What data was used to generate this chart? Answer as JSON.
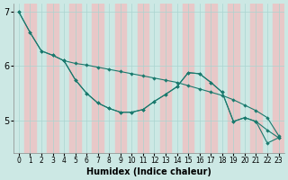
{
  "xlabel": "Humidex (Indice chaleur)",
  "bg_color": "#cce8e4",
  "grid_color": "#aad4d0",
  "band_color": "#e8c8c8",
  "line_color": "#1a7a6e",
  "xlim": [
    -0.5,
    23.5
  ],
  "ylim": [
    4.4,
    7.15
  ],
  "xticks": [
    0,
    1,
    2,
    3,
    4,
    5,
    6,
    7,
    8,
    9,
    10,
    11,
    12,
    13,
    14,
    15,
    16,
    17,
    18,
    19,
    20,
    21,
    22,
    23
  ],
  "yticks": [
    5,
    6,
    7
  ],
  "line1_x": [
    0,
    1,
    2,
    3,
    4,
    5,
    6,
    7,
    8,
    9,
    10,
    11,
    12,
    13,
    14,
    15,
    16,
    17,
    18,
    19,
    20,
    21,
    22,
    23
  ],
  "line1_y": [
    7.0,
    6.62,
    6.28,
    6.2,
    6.1,
    6.05,
    6.02,
    5.98,
    5.94,
    5.9,
    5.86,
    5.82,
    5.78,
    5.74,
    5.7,
    5.64,
    5.58,
    5.52,
    5.46,
    5.38,
    5.28,
    5.18,
    5.05,
    4.72
  ],
  "line2_x": [
    0,
    1,
    2,
    3,
    4,
    5,
    6,
    7,
    8,
    9,
    10,
    11,
    12,
    13,
    14,
    15,
    16,
    17,
    18,
    19,
    20,
    21,
    22,
    23
  ],
  "line2_y": [
    7.0,
    6.62,
    6.28,
    6.2,
    6.1,
    5.75,
    5.5,
    5.32,
    5.22,
    5.15,
    5.15,
    5.2,
    5.35,
    5.48,
    5.62,
    5.88,
    5.86,
    5.7,
    5.52,
    4.98,
    5.05,
    4.98,
    4.82,
    4.68
  ],
  "line3_x": [
    4,
    5,
    6,
    7,
    8,
    9,
    10,
    11,
    12,
    13,
    14,
    15,
    16,
    17,
    18,
    19,
    20,
    21,
    22,
    23
  ],
  "line3_y": [
    6.1,
    5.75,
    5.5,
    5.32,
    5.22,
    5.15,
    5.15,
    5.2,
    5.35,
    5.48,
    5.62,
    5.88,
    5.86,
    5.7,
    5.52,
    4.98,
    5.05,
    4.98,
    4.58,
    4.68
  ]
}
